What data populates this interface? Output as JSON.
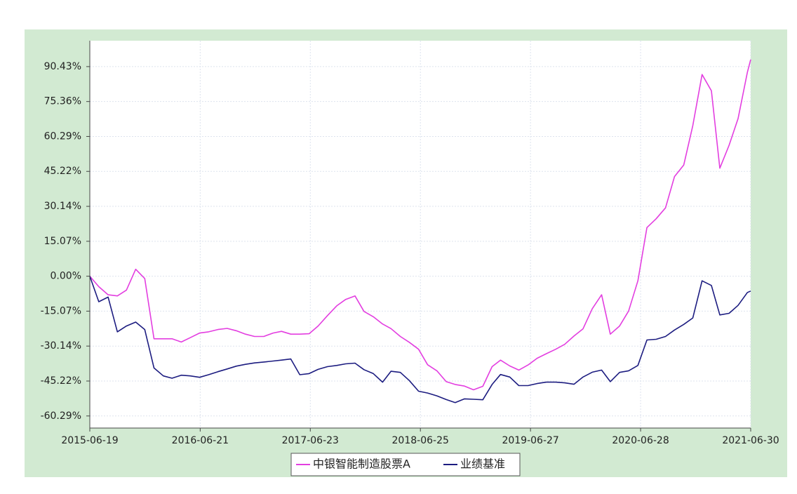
{
  "chart_data": {
    "type": "line",
    "x": [
      "2015-06-19",
      "2015-07-19",
      "2015-08-19",
      "2015-09-19",
      "2015-10-19",
      "2015-11-19",
      "2015-12-19",
      "2016-01-19",
      "2016-02-19",
      "2016-03-19",
      "2016-04-19",
      "2016-05-19",
      "2016-06-19",
      "2016-07-19",
      "2016-08-19",
      "2016-09-19",
      "2016-10-19",
      "2016-11-19",
      "2016-12-19",
      "2017-01-19",
      "2017-02-19",
      "2017-03-19",
      "2017-04-19",
      "2017-05-19",
      "2017-06-19",
      "2017-07-19",
      "2017-08-19",
      "2017-09-19",
      "2017-10-19",
      "2017-11-19",
      "2017-12-19",
      "2018-01-19",
      "2018-02-19",
      "2018-03-19",
      "2018-04-19",
      "2018-05-19",
      "2018-06-19",
      "2018-07-19",
      "2018-08-19",
      "2018-09-19",
      "2018-10-19",
      "2018-11-19",
      "2018-12-19",
      "2019-01-19",
      "2019-02-19",
      "2019-03-19",
      "2019-04-19",
      "2019-05-19",
      "2019-06-19",
      "2019-07-19",
      "2019-08-19",
      "2019-09-19",
      "2019-10-19",
      "2019-11-19",
      "2019-12-19",
      "2020-01-19",
      "2020-02-19",
      "2020-03-19",
      "2020-04-19",
      "2020-05-19",
      "2020-06-19",
      "2020-07-19",
      "2020-08-19",
      "2020-09-19",
      "2020-10-19",
      "2020-11-19",
      "2020-12-19",
      "2021-01-19",
      "2021-02-19",
      "2021-03-19",
      "2021-04-19",
      "2021-05-19",
      "2021-06-19",
      "2021-06-30"
    ],
    "series": [
      {
        "name": "中银智能制造股票A",
        "color": "#e33ee0",
        "values": [
          0,
          -4.5,
          -8,
          -8.5,
          -6,
          3,
          -1,
          -27,
          -27,
          -27,
          -28.4,
          -26.5,
          -24.5,
          -24,
          -23,
          -22.5,
          -23.5,
          -25,
          -26,
          -26,
          -24.5,
          -23.8,
          -25,
          -25,
          -24.8,
          -21.5,
          -17,
          -12.8,
          -10,
          -8.5,
          -15.2,
          -17.5,
          -20.6,
          -22.6,
          -26,
          -28.5,
          -31.5,
          -38.2,
          -40.8,
          -45.5,
          -46.7,
          -47.4,
          -49,
          -47.5,
          -39,
          -36.2,
          -38.7,
          -40.5,
          -38.3,
          -35.4,
          -33.4,
          -31.5,
          -29.4,
          -25.8,
          -22.7,
          -14,
          -8,
          -25,
          -21.5,
          -15,
          -2,
          21,
          24.8,
          29.5,
          43,
          48,
          65,
          87,
          80,
          46.6,
          56.5,
          68,
          88,
          93.5
        ]
      },
      {
        "name": "业绩基准",
        "color": "#1c1c80",
        "values": [
          0,
          -11,
          -9,
          -24,
          -21.5,
          -19.8,
          -23,
          -39.6,
          -43,
          -44,
          -42.7,
          -43,
          -43.6,
          -42.5,
          -41.2,
          -40,
          -38.8,
          -38,
          -37.4,
          -37,
          -36.6,
          -36.2,
          -35.7,
          -42.5,
          -42,
          -40.2,
          -39,
          -38.5,
          -37.8,
          -37.5,
          -40.3,
          -42,
          -45.7,
          -41,
          -41.5,
          -45,
          -49.6,
          -50.4,
          -51.6,
          -53.2,
          -54.5,
          -52.9,
          -53.1,
          -53.3,
          -46.7,
          -42.4,
          -43.5,
          -47.2,
          -47.2,
          -46.3,
          -45.7,
          -45.7,
          -46,
          -46.6,
          -43.5,
          -41.4,
          -40.5,
          -45.5,
          -41.5,
          -40.8,
          -38.5,
          -27.5,
          -27.2,
          -26,
          -23.2,
          -20.8,
          -18,
          -2,
          -4,
          -16.7,
          -16,
          -12.6,
          -7,
          -6.4
        ]
      }
    ],
    "xlim": [
      "2015-06-19",
      "2021-06-30"
    ],
    "xticks": [
      "2015-06-19",
      "2016-06-21",
      "2017-06-23",
      "2018-06-25",
      "2019-06-27",
      "2020-06-28",
      "2021-06-30"
    ],
    "ylim": [
      -65.5,
      101.6
    ],
    "yticks": [
      {
        "value": -60.29,
        "label": "-60.29%"
      },
      {
        "value": -45.22,
        "label": "-45.22%"
      },
      {
        "value": -30.14,
        "label": "-30.14%"
      },
      {
        "value": -15.07,
        "label": "-15.07%"
      },
      {
        "value": 0,
        "label": "0.00%"
      },
      {
        "value": 15.07,
        "label": "15.07%"
      },
      {
        "value": 30.14,
        "label": "30.14%"
      },
      {
        "value": 45.22,
        "label": "45.22%"
      },
      {
        "value": 60.29,
        "label": "60.29%"
      },
      {
        "value": 75.36,
        "label": "75.36%"
      },
      {
        "value": 90.43,
        "label": "90.43%"
      }
    ],
    "grid": true
  }
}
